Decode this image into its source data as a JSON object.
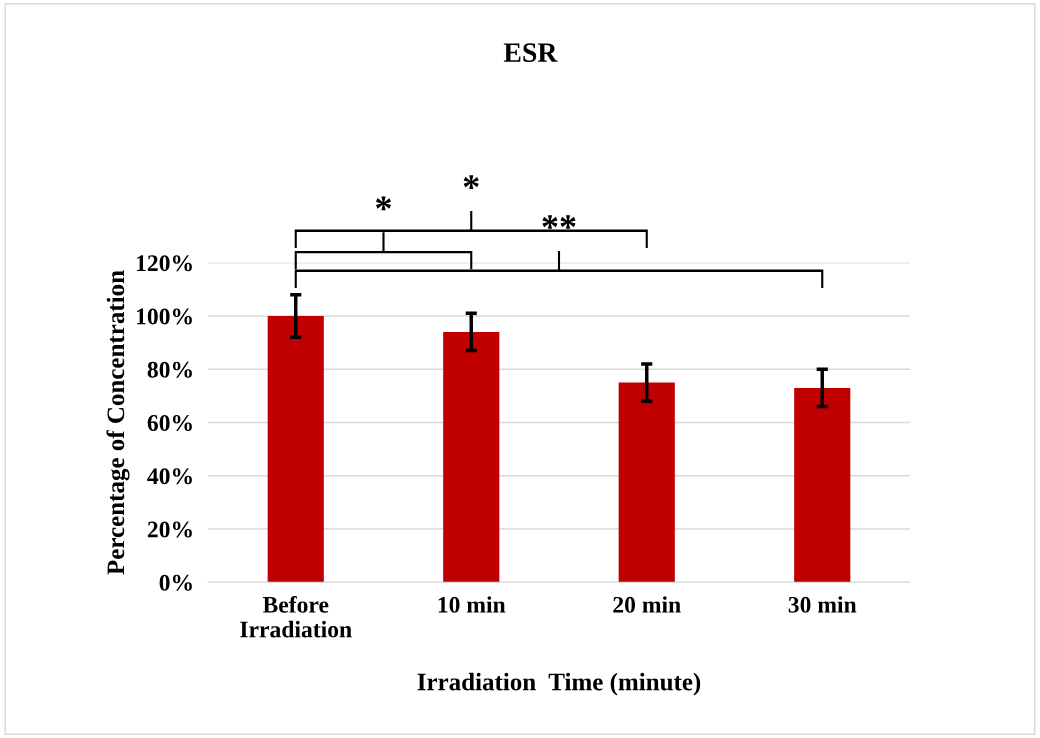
{
  "chart_data": {
    "type": "bar",
    "title": "ESR",
    "xlabel": "Irradiation  Time (minute)",
    "ylabel": "Percentage of Concentration",
    "categories": [
      "Before\nIrradiation",
      "10 min",
      "20 min",
      "30 min"
    ],
    "values": [
      100,
      94,
      75,
      73
    ],
    "errors": [
      8,
      7,
      7,
      7
    ],
    "color": "#c00000",
    "ylim": [
      0,
      120
    ],
    "yticks": [
      {
        "value": 0,
        "label": "0%"
      },
      {
        "value": 20,
        "label": "20%"
      },
      {
        "value": 40,
        "label": "40%"
      },
      {
        "value": 60,
        "label": "60%"
      },
      {
        "value": 80,
        "label": "80%"
      },
      {
        "value": 100,
        "label": "100%"
      },
      {
        "value": 120,
        "label": "120%"
      }
    ],
    "grid": "y",
    "annotations": [
      "*",
      "*",
      "**"
    ]
  }
}
